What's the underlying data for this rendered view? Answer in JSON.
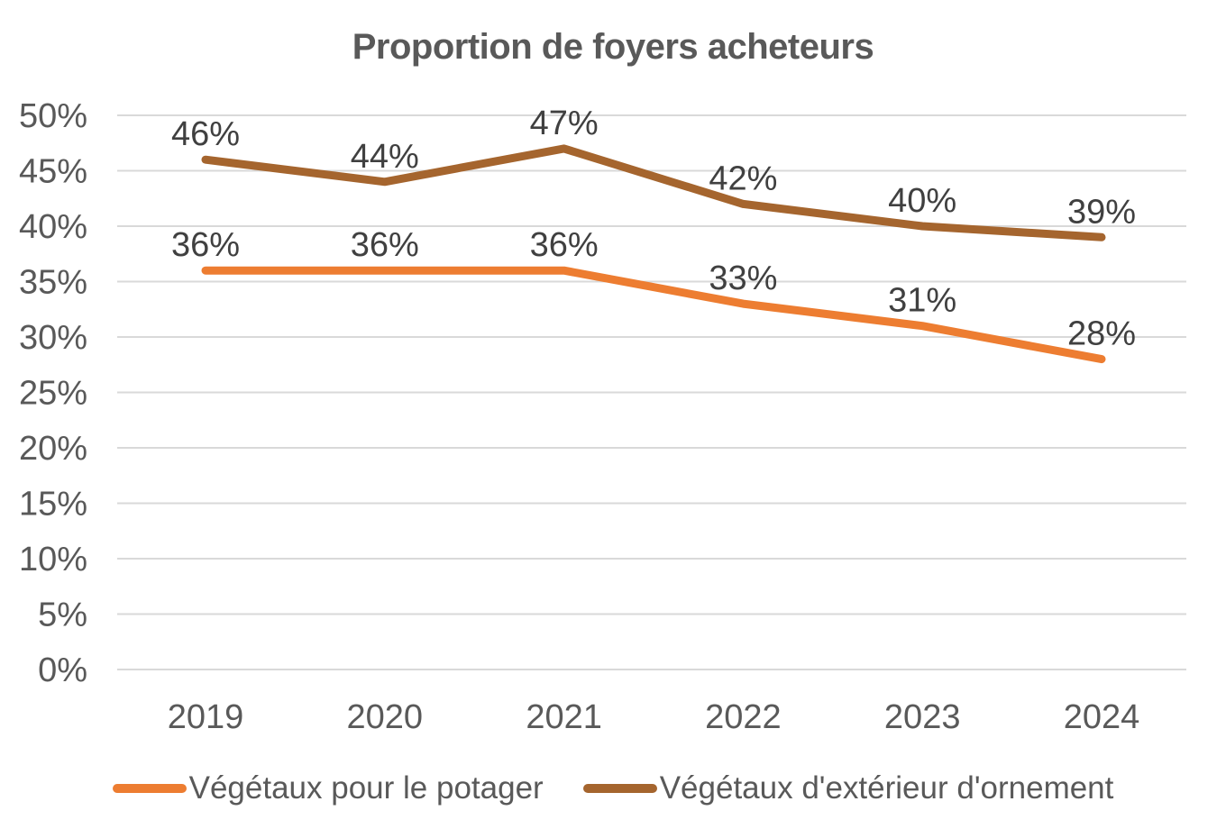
{
  "chart_data": {
    "type": "line",
    "title": "Proportion de foyers acheteurs",
    "x": [
      "2019",
      "2020",
      "2021",
      "2022",
      "2023",
      "2024"
    ],
    "series": [
      {
        "name": "Végétaux pour le potager",
        "color": "#ED7D31",
        "values": [
          36,
          36,
          36,
          33,
          31,
          28
        ],
        "labels": [
          "36%",
          "36%",
          "36%",
          "33%",
          "31%",
          "28%"
        ]
      },
      {
        "name": "Végétaux d'extérieur d'ornement",
        "color": "#A5652E",
        "values": [
          46,
          44,
          47,
          42,
          40,
          39
        ],
        "labels": [
          "46%",
          "44%",
          "47%",
          "42%",
          "40%",
          "39%"
        ]
      }
    ],
    "y_ticks": [
      "0%",
      "5%",
      "10%",
      "15%",
      "20%",
      "25%",
      "30%",
      "35%",
      "40%",
      "45%",
      "50%"
    ],
    "ylim": [
      0,
      50
    ],
    "y_tick_step": 5,
    "xlabel": "",
    "ylabel": "",
    "grid": true,
    "gridline_color": "#D9D9D9",
    "legend_position": "bottom",
    "text_colors": {
      "title": "#595959",
      "axis": "#595959",
      "data_label": "#404040"
    }
  }
}
